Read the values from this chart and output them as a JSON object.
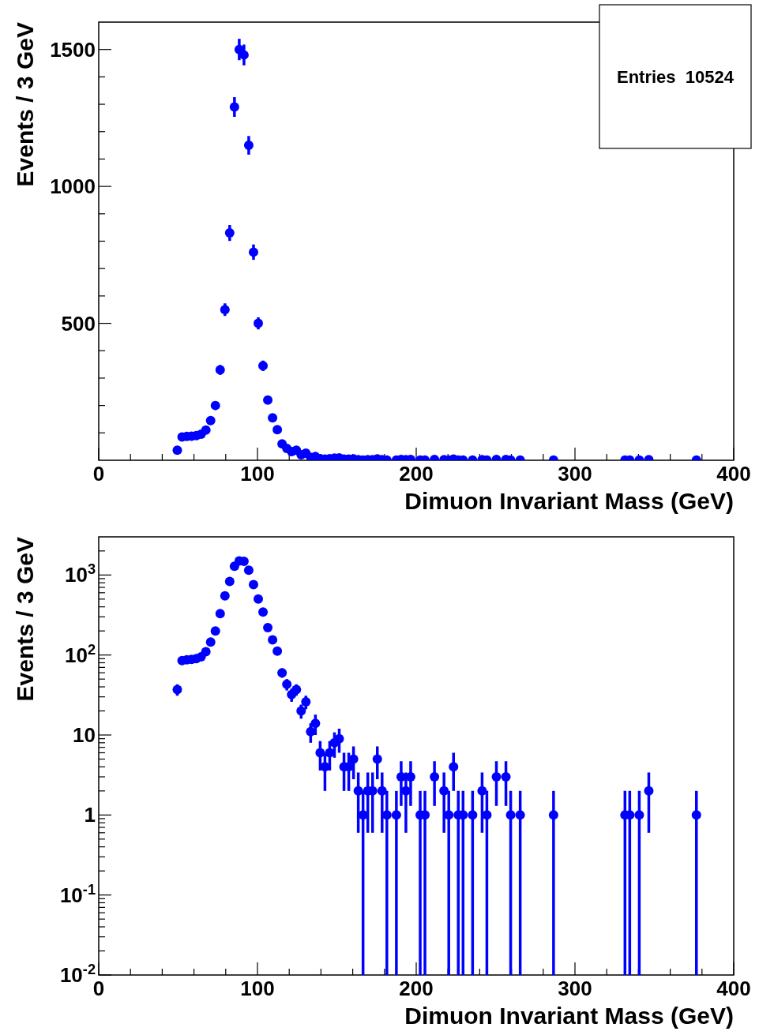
{
  "chart_data": [
    {
      "type": "scatter",
      "xlabel": "Dimuon Invariant Mass (GeV)",
      "ylabel": "Events / 3 GeV",
      "color": "#0000ff",
      "marker": "circle",
      "xlim": [
        0,
        400
      ],
      "xticks": [
        0,
        100,
        200,
        300,
        400
      ],
      "ylim": [
        0,
        1600
      ],
      "yticks": [
        500,
        1000,
        1500
      ],
      "annotations": [
        "Entries  10524"
      ],
      "x": [
        49.5,
        52.5,
        55.5,
        58.5,
        61.5,
        64.5,
        67.5,
        70.5,
        73.5,
        76.5,
        79.5,
        82.5,
        85.5,
        88.5,
        91.5,
        94.5,
        97.5,
        100.5,
        103.5,
        106.5,
        109.5,
        112.5,
        115.5,
        118.5,
        121.5,
        124.5,
        127.5,
        130.5,
        133.5,
        136.5,
        139.5,
        142.5,
        145.5,
        148.5,
        151.5,
        154.5,
        157.5,
        160.5,
        163.5,
        166.5,
        169.5,
        172.5,
        175.5,
        178.5,
        181.5,
        187.5,
        190.5,
        193.5,
        196.5,
        202.5,
        205.5,
        211.5,
        217.5,
        220.5,
        223.5,
        226.5,
        229.5,
        235.5,
        241.5,
        244.5,
        250.5,
        256.5,
        259.5,
        265.5,
        286.5,
        331.5,
        334.5,
        340.5,
        346.5,
        376.5
      ],
      "values": [
        37,
        85,
        87,
        88,
        90,
        95,
        110,
        145,
        200,
        330,
        550,
        830,
        1290,
        1500,
        1480,
        1150,
        760,
        500,
        345,
        220,
        155,
        112,
        60,
        43,
        32,
        37,
        20,
        26,
        11,
        14,
        6,
        4,
        6,
        8,
        9,
        4,
        4,
        5,
        2,
        1,
        2,
        2,
        5,
        2,
        1,
        1,
        3,
        2,
        3,
        1,
        1,
        3,
        2,
        1,
        4,
        1,
        1,
        1,
        2,
        1,
        3,
        3,
        1,
        1,
        1,
        1,
        1,
        1,
        2,
        1
      ],
      "errors": [
        null,
        null,
        null,
        null,
        null,
        null,
        null,
        null,
        null,
        18,
        23,
        29,
        36,
        39,
        38,
        34,
        28,
        22,
        19,
        null,
        null,
        null,
        null,
        null,
        null,
        null,
        null,
        null,
        null,
        null,
        null,
        null,
        null,
        null,
        null,
        null,
        null,
        null,
        null,
        null,
        null,
        null,
        null,
        null,
        null,
        null,
        null,
        null,
        null,
        null,
        null,
        null,
        null,
        null,
        null,
        null,
        null,
        null,
        null,
        null,
        null,
        null,
        null,
        null,
        null,
        null,
        null,
        null,
        null,
        null
      ]
    },
    {
      "type": "scatter",
      "xlabel": "Dimuon Invariant Mass (GeV)",
      "ylabel": "Events / 3 GeV",
      "color": "#0000ff",
      "marker": "circle",
      "log": "y",
      "xlim": [
        0,
        400
      ],
      "xticks": [
        0,
        100,
        200,
        300,
        400
      ],
      "ylim": [
        0.01,
        3000
      ],
      "yticks": [
        {
          "value": 0.01,
          "label": "10$^{-2}$"
        },
        {
          "value": 0.1,
          "label": "10$^{-1}$"
        },
        1,
        10,
        {
          "value": 100,
          "label": "10$^{2}$"
        },
        {
          "value": 1000,
          "label": "10$^{3}$"
        }
      ],
      "x": [
        49.5,
        52.5,
        55.5,
        58.5,
        61.5,
        64.5,
        67.5,
        70.5,
        73.5,
        76.5,
        79.5,
        82.5,
        85.5,
        88.5,
        91.5,
        94.5,
        97.5,
        100.5,
        103.5,
        106.5,
        109.5,
        112.5,
        115.5,
        118.5,
        121.5,
        124.5,
        127.5,
        130.5,
        133.5,
        136.5,
        139.5,
        142.5,
        145.5,
        148.5,
        151.5,
        154.5,
        157.5,
        160.5,
        163.5,
        166.5,
        169.5,
        172.5,
        175.5,
        178.5,
        181.5,
        187.5,
        190.5,
        193.5,
        196.5,
        202.5,
        205.5,
        211.5,
        217.5,
        220.5,
        223.5,
        226.5,
        229.5,
        235.5,
        241.5,
        244.5,
        250.5,
        256.5,
        259.5,
        265.5,
        286.5,
        331.5,
        334.5,
        340.5,
        346.5,
        376.5
      ],
      "values": [
        37,
        85,
        87,
        88,
        90,
        95,
        110,
        145,
        200,
        330,
        550,
        830,
        1290,
        1500,
        1480,
        1150,
        760,
        500,
        345,
        220,
        155,
        112,
        60,
        43,
        32,
        37,
        20,
        26,
        11,
        14,
        6,
        4,
        6,
        8,
        9,
        4,
        4,
        5,
        2,
        1,
        2,
        2,
        5,
        2,
        1,
        1,
        3,
        2,
        3,
        1,
        1,
        3,
        2,
        1,
        4,
        1,
        1,
        1,
        2,
        1,
        3,
        3,
        1,
        1,
        1,
        1,
        1,
        1,
        2,
        1
      ],
      "errors": [
        6,
        9,
        9,
        9,
        9,
        10,
        10,
        12,
        14,
        18,
        23,
        29,
        36,
        39,
        38,
        34,
        28,
        22,
        19,
        15,
        12,
        11,
        8,
        7,
        6,
        6,
        4,
        5,
        3,
        4,
        2.4,
        2,
        2.4,
        2.8,
        3,
        2,
        2,
        2.2,
        1.4,
        [
          0.01,
          2
        ],
        1.4,
        1.4,
        2.2,
        1.4,
        [
          0.01,
          2
        ],
        [
          0.01,
          2
        ],
        1.7,
        1.4,
        1.7,
        [
          0.01,
          2
        ],
        [
          0.01,
          2
        ],
        1.7,
        1.4,
        [
          0.01,
          2
        ],
        2,
        [
          0.01,
          2
        ],
        [
          0.01,
          2
        ],
        [
          0.01,
          2
        ],
        1.4,
        [
          0.01,
          2
        ],
        1.7,
        1.7,
        [
          0.01,
          2
        ],
        [
          0.01,
          2
        ],
        [
          0.01,
          2
        ],
        [
          0.01,
          2
        ],
        [
          0.01,
          2
        ],
        [
          0.01,
          2
        ],
        1.4,
        [
          0.01,
          2
        ]
      ]
    }
  ]
}
